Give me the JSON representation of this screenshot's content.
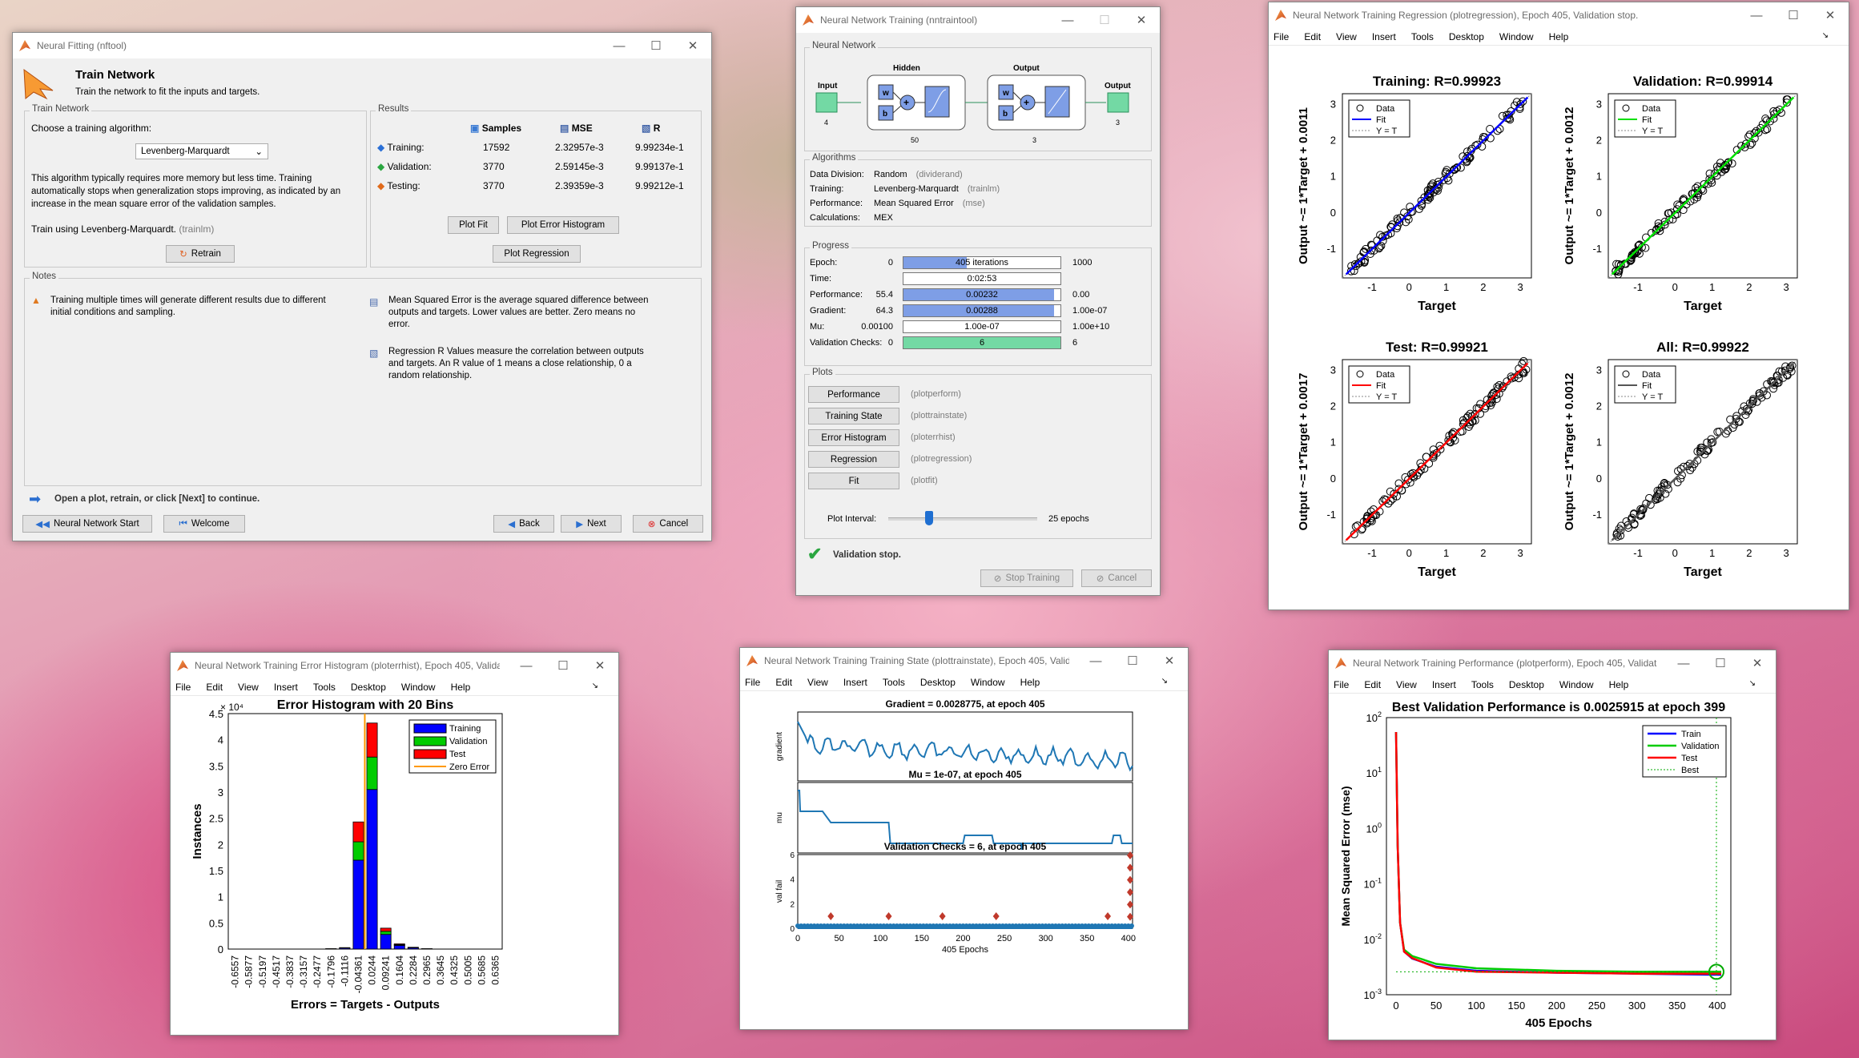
{
  "fitting": {
    "title": "Neural Fitting (nftool)",
    "header": "Train Network",
    "subheader": "Train the network to fit the inputs and targets.",
    "train_panel": "Train Network",
    "choose": "Choose a training algorithm:",
    "algo": "Levenberg-Marquardt",
    "desc": "This algorithm typically requires more memory but less time. Training automatically stops when generalization stops improving, as indicated by an increase in the mean square error of the validation samples.",
    "train_using": "Train using Levenberg-Marquardt.",
    "train_using_fn": "(trainlm)",
    "retrain": "Retrain",
    "results_panel": "Results",
    "col_samples": "Samples",
    "col_mse": "MSE",
    "col_r": "R",
    "rows": [
      {
        "label": "Training:",
        "samples": "17592",
        "mse": "2.32957e-3",
        "r": "9.99234e-1"
      },
      {
        "label": "Validation:",
        "samples": "3770",
        "mse": "2.59145e-3",
        "r": "9.99137e-1"
      },
      {
        "label": "Testing:",
        "samples": "3770",
        "mse": "2.39359e-3",
        "r": "9.99212e-1"
      }
    ],
    "plot_fit": "Plot Fit",
    "plot_err": "Plot Error Histogram",
    "plot_reg": "Plot Regression",
    "notes_panel": "Notes",
    "note1": "Training multiple times will generate different results due to different initial conditions and sampling.",
    "note2": "Mean Squared Error is the average squared difference between outputs and targets. Lower values are better. Zero means no error.",
    "note3": "Regression R Values measure the correlation between outputs and targets. An R value of 1 means a close relationship, 0 a random relationship.",
    "hint": "Open a plot, retrain, or click [Next] to continue.",
    "nn_start": "Neural Network Start",
    "welcome": "Welcome",
    "back": "Back",
    "next": "Next",
    "cancel": "Cancel"
  },
  "nntrain": {
    "title": "Neural Network Training (nntraintool)",
    "nn_panel": "Neural Network",
    "input": "Input",
    "input_n": "4",
    "hidden": "Hidden",
    "hidden_n": "50",
    "output": "Output",
    "output_n": "3",
    "output_out": "Output",
    "output_out_n": "3",
    "w": "w",
    "b": "b",
    "alg_panel": "Algorithms",
    "alg_rows": [
      {
        "k": "Data Division:",
        "v": "Random",
        "f": "(dividerand)"
      },
      {
        "k": "Training:",
        "v": "Levenberg-Marquardt",
        "f": "(trainlm)"
      },
      {
        "k": "Performance:",
        "v": "Mean Squared Error",
        "f": "(mse)"
      },
      {
        "k": "Calculations:",
        "v": "MEX",
        "f": ""
      }
    ],
    "prog_panel": "Progress",
    "prog_rows": [
      {
        "k": "Epoch:",
        "start": "0",
        "val": "405 iterations",
        "end": "1000",
        "frac": 0.405
      },
      {
        "k": "Time:",
        "start": "",
        "val": "0:02:53",
        "end": "",
        "frac": 0
      },
      {
        "k": "Performance:",
        "start": "55.4",
        "val": "0.00232",
        "end": "0.00",
        "frac": 0.96
      },
      {
        "k": "Gradient:",
        "start": "64.3",
        "val": "0.00288",
        "end": "1.00e-07",
        "frac": 0.96
      },
      {
        "k": "Mu:",
        "start": "0.00100",
        "val": "1.00e-07",
        "end": "1.00e+10",
        "frac": 0
      },
      {
        "k": "Validation Checks:",
        "start": "0",
        "val": "6",
        "end": "6",
        "frac": 1
      }
    ],
    "plots_panel": "Plots",
    "plot_btns": [
      {
        "b": "Performance",
        "f": "(plotperform)"
      },
      {
        "b": "Training State",
        "f": "(plottrainstate)"
      },
      {
        "b": "Error Histogram",
        "f": "(ploterrhist)"
      },
      {
        "b": "Regression",
        "f": "(plotregression)"
      },
      {
        "b": "Fit",
        "f": "(plotfit)"
      }
    ],
    "interval_label": "Plot Interval:",
    "interval": "25 epochs",
    "status": "Validation stop.",
    "stop": "Stop Training",
    "cancel": "Cancel"
  },
  "regression": {
    "title": "Neural Network Training Regression (plotregression), Epoch 405, Validation stop.",
    "plots": [
      {
        "title": "Training: R=0.99923",
        "ylabel": "Output ~= 1*Target + 0.0011",
        "color": "#0000ff"
      },
      {
        "title": "Validation: R=0.99914",
        "ylabel": "Output ~= 1*Target + 0.0012",
        "color": "#00e000"
      },
      {
        "title": "Test: R=0.99921",
        "ylabel": "Output ~= 1*Target + 0.0017",
        "color": "#ff0000"
      },
      {
        "title": "All: R=0.99922",
        "ylabel": "Output ~= 1*Target + 0.0012",
        "color": "#555555"
      }
    ],
    "xlabel": "Target",
    "legend": [
      "Data",
      "Fit",
      "Y = T"
    ],
    "xticks": [
      "-1",
      "0",
      "1",
      "2",
      "3"
    ],
    "yticks": [
      "-1",
      "0",
      "1",
      "2",
      "3"
    ]
  },
  "errhist": {
    "title": "Neural Network Training Error Histogram (ploterrhist), Epoch 405, Validat...",
    "plot_title": "Error Histogram with 20 Bins",
    "ylabel": "Instances",
    "xlabel": "Errors = Targets - Outputs",
    "exponent": "× 10⁴",
    "yticks": [
      "0",
      "0.5",
      "1",
      "1.5",
      "2",
      "2.5",
      "3",
      "3.5",
      "4",
      "4.5"
    ],
    "bins": [
      "-0.6557",
      "-0.5877",
      "-0.5197",
      "-0.4517",
      "-0.3837",
      "-0.3157",
      "-0.2477",
      "-0.1796",
      "-0.1116",
      "-0.04361",
      "0.0244",
      "0.09241",
      "0.1604",
      "0.2284",
      "0.2965",
      "0.3645",
      "0.4325",
      "0.5005",
      "0.5685",
      "0.6365"
    ],
    "legend": [
      "Training",
      "Validation",
      "Test",
      "Zero Error"
    ]
  },
  "trainstate": {
    "title": "Neural Network Training Training State (plottrainstate), Epoch 405, Valida...",
    "t1": "Gradient = 0.0028775, at epoch 405",
    "t2": "Mu = 1e-07, at epoch 405",
    "t3": "Validation Checks = 6, at epoch 405",
    "y1": "gradient",
    "y2": "mu",
    "y3": "val fail",
    "xlabel": "405 Epochs",
    "xticks": [
      "0",
      "50",
      "100",
      "150",
      "200",
      "250",
      "300",
      "350",
      "400"
    ],
    "y3ticks": [
      "0",
      "2",
      "4",
      "6"
    ]
  },
  "perform": {
    "title": "Neural Network Training Performance (plotperform), Epoch 405, Validati...",
    "plot_title": "Best Validation Performance is 0.0025915 at epoch 399",
    "ylabel": "Mean Squared Error  (mse)",
    "xlabel": "405 Epochs",
    "xticks": [
      "0",
      "50",
      "100",
      "150",
      "200",
      "250",
      "300",
      "350",
      "400"
    ],
    "legend": [
      "Train",
      "Validation",
      "Test",
      "Best"
    ]
  },
  "menus": [
    "File",
    "Edit",
    "View",
    "Insert",
    "Tools",
    "Desktop",
    "Window",
    "Help"
  ],
  "chart_data": [
    {
      "type": "bar",
      "title": "Error Histogram with 20 Bins",
      "xlabel": "Errors = Targets - Outputs",
      "ylabel": "Instances",
      "categories": [
        "-0.6557",
        "-0.5877",
        "-0.5197",
        "-0.4517",
        "-0.3837",
        "-0.3157",
        "-0.2477",
        "-0.1796",
        "-0.1116",
        "-0.04361",
        "0.0244",
        "0.09241",
        "0.1604",
        "0.2284",
        "0.2965",
        "0.3645",
        "0.4325",
        "0.5005",
        "0.5685",
        "0.6365"
      ],
      "series": [
        {
          "name": "Training",
          "values": [
            0,
            0,
            0,
            0,
            0,
            0,
            0,
            50,
            200,
            17000,
            30500,
            2800,
            700,
            250,
            50,
            0,
            0,
            0,
            0,
            0
          ]
        },
        {
          "name": "Validation",
          "values": [
            0,
            0,
            0,
            0,
            0,
            0,
            0,
            10,
            40,
            3500,
            6200,
            600,
            150,
            50,
            10,
            0,
            0,
            0,
            0,
            0
          ]
        },
        {
          "name": "Test",
          "values": [
            0,
            0,
            0,
            0,
            0,
            0,
            0,
            10,
            40,
            3800,
            6500,
            600,
            150,
            50,
            10,
            0,
            0,
            0,
            0,
            0
          ]
        }
      ],
      "zero_error": 0,
      "ylim": [
        0,
        45000
      ]
    },
    {
      "type": "line",
      "title": "Best Validation Performance is 0.0025915 at epoch 399",
      "xlabel": "405 Epochs",
      "ylabel": "Mean Squared Error  (mse)",
      "yscale": "log",
      "ylim": [
        0.001,
        100
      ],
      "xlim": [
        0,
        405
      ],
      "x": [
        0,
        2,
        5,
        10,
        20,
        50,
        100,
        200,
        300,
        399,
        405
      ],
      "series": [
        {
          "name": "Train",
          "values": [
            55,
            0.5,
            0.02,
            0.006,
            0.0045,
            0.0032,
            0.0027,
            0.0025,
            0.0024,
            0.0023,
            0.0023
          ]
        },
        {
          "name": "Validation",
          "values": [
            55,
            0.5,
            0.02,
            0.0065,
            0.005,
            0.0036,
            0.003,
            0.0027,
            0.0026,
            0.0026,
            0.0026
          ]
        },
        {
          "name": "Test",
          "values": [
            55,
            0.5,
            0.02,
            0.006,
            0.0046,
            0.0031,
            0.0026,
            0.0025,
            0.0024,
            0.0024,
            0.0024
          ]
        }
      ],
      "best": {
        "epoch": 399,
        "value": 0.0025915
      }
    }
  ]
}
